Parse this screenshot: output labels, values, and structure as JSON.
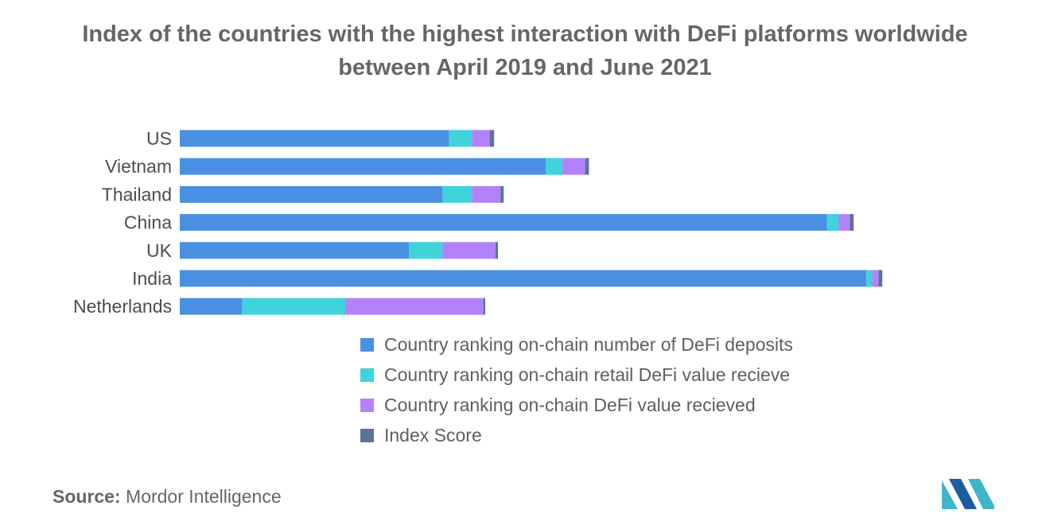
{
  "title": {
    "line1": "Index of the countries with the highest interaction with DeFi platforms worldwide",
    "line2": "between April 2019 and June 2021"
  },
  "chart_data": {
    "type": "bar",
    "orientation": "horizontal",
    "stacked": true,
    "categories": [
      "US",
      "Vietnam",
      "Thailand",
      "China",
      "UK",
      "India",
      "Netherlands"
    ],
    "series": [
      {
        "name": "Country ranking on-chain number of DeFi deposits",
        "color": "#4a90e2",
        "values": [
          42.3,
          57.5,
          41.3,
          101.7,
          36.0,
          107.9,
          9.8
        ]
      },
      {
        "name": "Country ranking on-chain retail DeFi value recieve",
        "color": "#3fd3da",
        "values": [
          3.6,
          2.6,
          4.6,
          1.8,
          5.3,
          0.9,
          16.2
        ]
      },
      {
        "name": "Country ranking on-chain DeFi value recieved",
        "color": "#b282fb",
        "values": [
          2.8,
          3.6,
          4.5,
          1.8,
          8.3,
          1.0,
          21.7
        ]
      },
      {
        "name": "Index Score",
        "color": "#5c7399",
        "values": [
          0.7,
          0.6,
          0.5,
          0.6,
          0.4,
          0.6,
          0.3
        ]
      }
    ],
    "xlim": [
      0,
      125
    ],
    "grid": false,
    "legend_position": "bottom-right"
  },
  "source": {
    "label": "Source:",
    "text": "Mordor Intelligence"
  },
  "logo": {
    "name": "mordor-intelligence-logo",
    "colors": [
      "#3fb6c8",
      "#1d5c9e"
    ]
  }
}
